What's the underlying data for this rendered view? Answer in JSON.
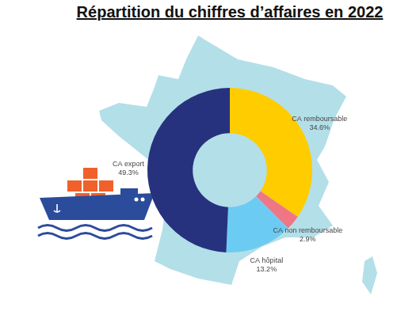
{
  "chart_data": {
    "type": "doughnut",
    "title": "Répartition du chiffres d’affaires en 2022",
    "categories": [
      "CA remboursable",
      "CA non remboursable",
      "CA hôpital",
      "CA export"
    ],
    "values": [
      34.6,
      2.9,
      13.2,
      49.3
    ],
    "value_labels": [
      "34.6%",
      "2.9%",
      "13.2%",
      "49.3%"
    ],
    "colors": [
      "#ffcc00",
      "#f07585",
      "#6ccbf3",
      "#27327e"
    ],
    "data_labels": true
  }
}
